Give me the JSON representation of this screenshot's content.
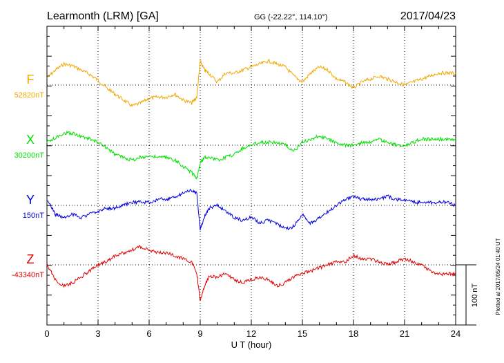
{
  "header": {
    "station": "Learmonth (LRM)  [GA]",
    "coords": "GG (-22.22°, 114.10°)",
    "date": "2017/04/23"
  },
  "chart_data": {
    "type": "line",
    "xlabel": "U T (hour)",
    "xlim": [
      0,
      24
    ],
    "x_ticks": [
      "0",
      "3",
      "6",
      "9",
      "12",
      "15",
      "18",
      "21",
      "24"
    ],
    "scale_bar": "100 nT",
    "plotted_note": "Plotted at 2017/05/24 01:40 UT",
    "grid": true,
    "series": [
      {
        "name": "F",
        "baseline": "52820nT",
        "color": "#f0a800",
        "x": [
          0,
          0.5,
          1,
          1.5,
          2,
          2.5,
          3,
          3.5,
          4,
          4.5,
          5,
          5.5,
          6,
          6.5,
          7,
          7.5,
          8,
          8.5,
          8.8,
          9,
          9.25,
          9.5,
          10,
          10.5,
          11,
          11.5,
          12,
          12.5,
          13,
          13.5,
          14,
          14.5,
          15,
          15.5,
          16,
          16.5,
          17,
          17.5,
          18,
          18.5,
          19,
          19.5,
          20,
          20.5,
          21,
          21.5,
          22,
          22.5,
          23,
          23.5,
          24
        ],
        "values": [
          12,
          25,
          35,
          32,
          25,
          18,
          8,
          -5,
          -15,
          -25,
          -35,
          -30,
          -22,
          -20,
          -20,
          -15,
          -25,
          -30,
          -20,
          40,
          25,
          20,
          5,
          20,
          20,
          25,
          30,
          35,
          40,
          35,
          30,
          15,
          5,
          20,
          30,
          25,
          10,
          5,
          -5,
          5,
          10,
          15,
          10,
          5,
          0,
          5,
          10,
          15,
          20,
          20,
          20
        ]
      },
      {
        "name": "X",
        "baseline": "30200nT",
        "color": "#00e000",
        "x": [
          0,
          0.5,
          1,
          1.5,
          2,
          2.5,
          3,
          3.5,
          4,
          4.5,
          5,
          5.5,
          6,
          6.5,
          7,
          7.5,
          8,
          8.5,
          8.8,
          9,
          9.25,
          9.5,
          10,
          10.5,
          11,
          11.5,
          12,
          12.5,
          13,
          13.5,
          14,
          14.5,
          15,
          15.5,
          16,
          16.5,
          17,
          17.5,
          18,
          18.5,
          19,
          19.5,
          20,
          20.5,
          21,
          21.5,
          22,
          22.5,
          23,
          23.5,
          24
        ],
        "values": [
          5,
          12,
          20,
          20,
          15,
          10,
          5,
          -5,
          -15,
          -20,
          -25,
          -20,
          -18,
          -20,
          -20,
          -25,
          -35,
          -45,
          -55,
          -30,
          -20,
          -20,
          -25,
          -20,
          -15,
          -5,
          0,
          5,
          5,
          5,
          0,
          -10,
          5,
          10,
          15,
          10,
          5,
          0,
          0,
          5,
          5,
          10,
          5,
          0,
          0,
          5,
          10,
          10,
          10,
          10,
          10
        ]
      },
      {
        "name": "Y",
        "baseline": "150nT",
        "color": "#0000e0",
        "x": [
          0,
          0.5,
          1,
          1.5,
          2,
          2.5,
          3,
          3.5,
          4,
          4.5,
          5,
          5.5,
          6,
          6.5,
          7,
          7.5,
          8,
          8.5,
          8.8,
          9,
          9.25,
          9.5,
          10,
          10.5,
          11,
          11.5,
          12,
          12.5,
          13,
          13.5,
          14,
          14.5,
          15,
          15.5,
          16,
          16.5,
          17,
          17.5,
          18,
          18.5,
          19,
          19.5,
          20,
          20.5,
          21,
          21.5,
          22,
          22.5,
          23,
          23.5,
          24
        ],
        "values": [
          10,
          -15,
          -20,
          -15,
          -20,
          -15,
          -10,
          -5,
          -5,
          0,
          5,
          5,
          5,
          10,
          10,
          15,
          20,
          25,
          20,
          -40,
          -20,
          -5,
          0,
          -10,
          -20,
          -25,
          -20,
          -30,
          -25,
          -30,
          -40,
          -35,
          -15,
          -30,
          -20,
          -10,
          0,
          10,
          15,
          10,
          10,
          10,
          15,
          10,
          10,
          5,
          5,
          5,
          5,
          5,
          0
        ]
      },
      {
        "name": "Z",
        "baseline": "-43340nT",
        "color": "#e00000",
        "x": [
          0,
          0.5,
          1,
          1.5,
          2,
          2.5,
          3,
          3.5,
          4,
          4.5,
          5,
          5.5,
          6,
          6.5,
          7,
          7.5,
          8,
          8.5,
          8.8,
          9,
          9.25,
          9.5,
          10,
          10.5,
          11,
          11.5,
          12,
          12.5,
          13,
          13.5,
          14,
          14.5,
          15,
          15.5,
          16,
          16.5,
          17,
          17.5,
          18,
          18.5,
          19,
          19.5,
          20,
          20.5,
          21,
          21.5,
          22,
          22.5,
          23,
          23.5,
          24
        ],
        "values": [
          0,
          -25,
          -35,
          -30,
          -20,
          -10,
          0,
          5,
          15,
          20,
          25,
          30,
          25,
          20,
          20,
          15,
          10,
          5,
          -15,
          -60,
          -35,
          -20,
          -20,
          -15,
          -25,
          -30,
          -25,
          -20,
          -25,
          -35,
          -30,
          -20,
          -15,
          -10,
          -5,
          0,
          5,
          5,
          15,
          10,
          10,
          5,
          0,
          5,
          10,
          5,
          0,
          -10,
          -15,
          -15,
          -15
        ]
      }
    ]
  }
}
